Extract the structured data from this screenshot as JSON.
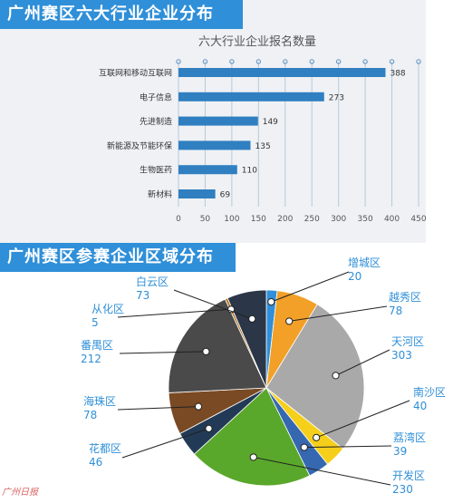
{
  "banners": {
    "industry": "广州赛区六大行业企业分布",
    "region": "广州赛区参赛企业区域分布"
  },
  "watermark": "广州日报",
  "chart_data": [
    {
      "type": "bar",
      "orientation": "horizontal",
      "title": "六大行业企业报名数量",
      "categories": [
        "互联网和移动互联网",
        "电子信息",
        "先进制造",
        "新能源及节能环保",
        "生物医药",
        "新材料"
      ],
      "values": [
        388,
        273,
        149,
        135,
        110,
        69
      ],
      "xlim": [
        0,
        450
      ],
      "xticks": [
        0,
        50,
        100,
        150,
        200,
        250,
        300,
        350,
        400,
        450
      ],
      "grid": true,
      "color": "#2f7fc1"
    },
    {
      "type": "pie",
      "labels": [
        "增城区",
        "越秀区",
        "天河区",
        "南沙区",
        "荔湾区",
        "开发区",
        "花都区",
        "海珠区",
        "番禺区",
        "从化区",
        "白云区"
      ],
      "values": [
        20,
        78,
        303,
        40,
        39,
        230,
        46,
        78,
        212,
        5,
        73
      ],
      "colors": [
        "#2f8fd8",
        "#f2a027",
        "#a9a9a9",
        "#f5cf1a",
        "#3568b0",
        "#5aa82b",
        "#223a55",
        "#7a4a24",
        "#4a4a4a",
        "#b27a2d",
        "#2b3648"
      ],
      "label_color": "#2f8fd8"
    }
  ]
}
